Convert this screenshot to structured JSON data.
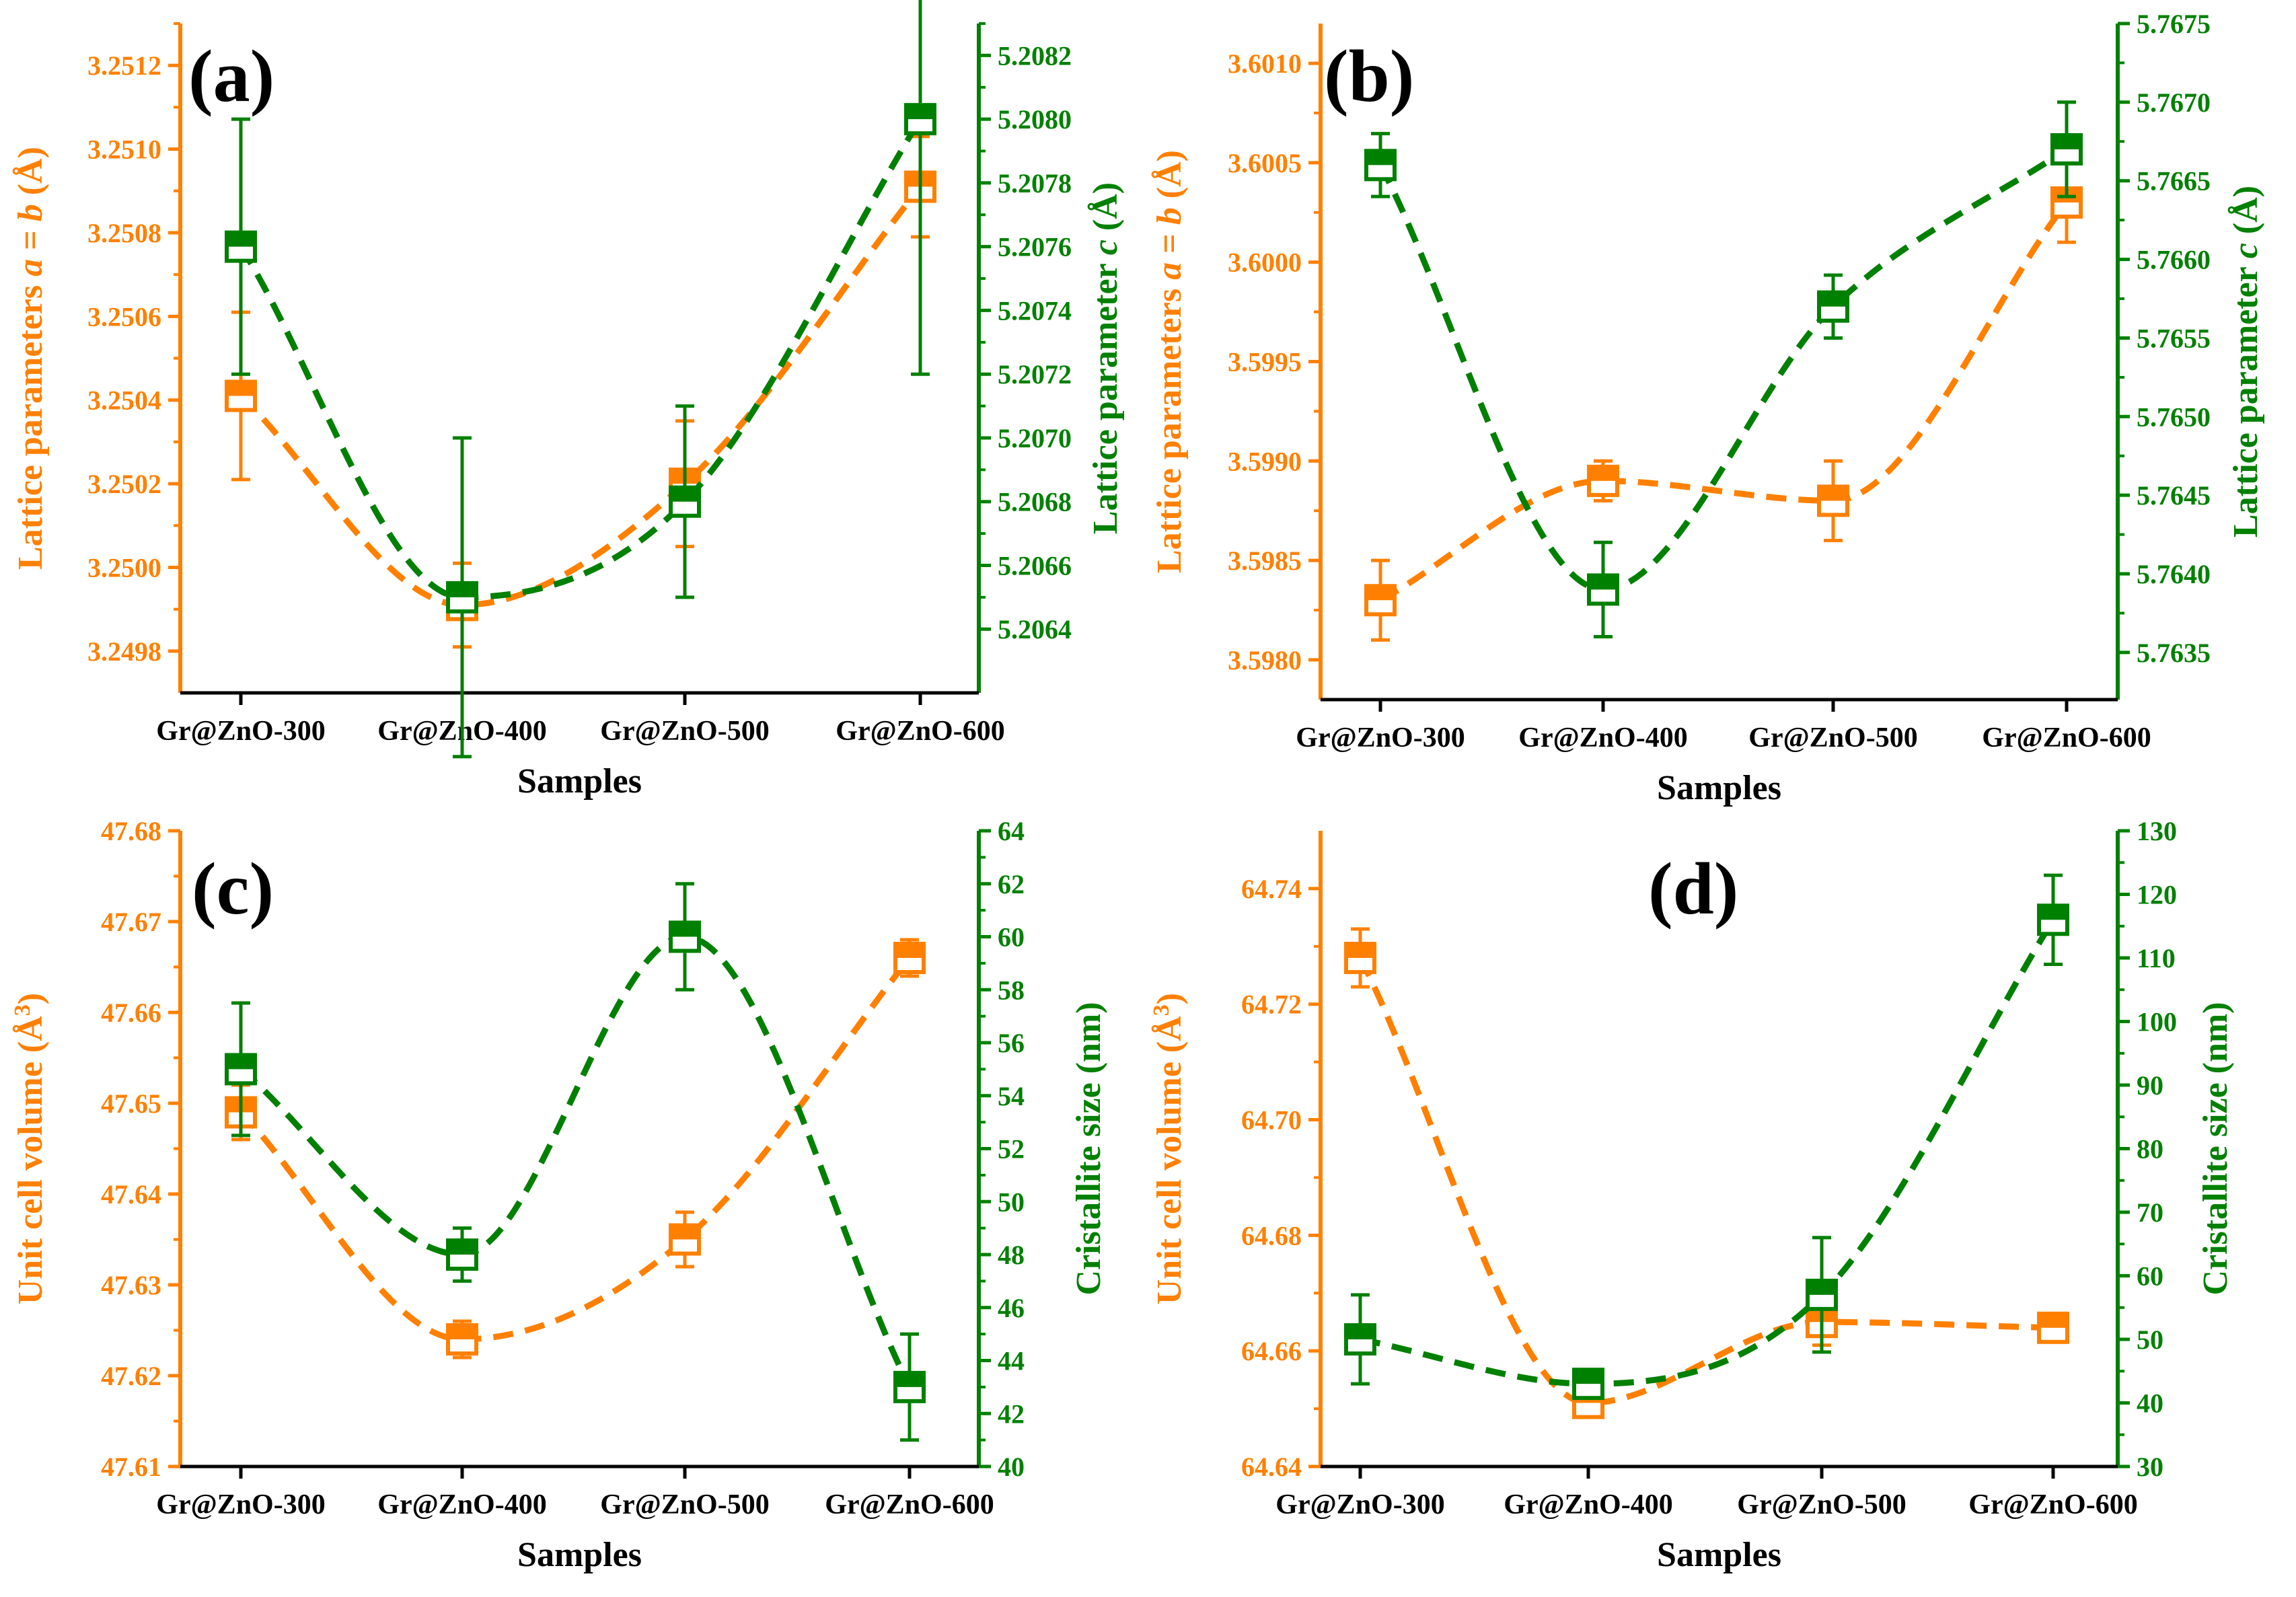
{
  "colors": {
    "left_series": "#FF8000",
    "right_series": "#008000",
    "axis": "#000000"
  },
  "chart_data": [
    {
      "type": "line",
      "panel_label": "(a)",
      "categories": [
        "Gr@ZnO-300",
        "Gr@ZnO-400",
        "Gr@ZnO-500",
        "Gr@ZnO-600"
      ],
      "xlabel": "Samples",
      "ylabel_left": [
        "Lattice parameters ",
        "a",
        " = ",
        "b",
        " (Å)"
      ],
      "ylabel_right": [
        "Lattice parameter ",
        "c",
        " (Å)"
      ],
      "ylim_left": [
        3.2497,
        3.2513
      ],
      "ylim_right": [
        5.2062,
        5.2083
      ],
      "yticks_left": [
        "3.2498",
        "3.2500",
        "3.2502",
        "3.2504",
        "3.2506",
        "3.2508",
        "3.2510",
        "3.2512"
      ],
      "yticks_right": [
        "5.2064",
        "5.2066",
        "5.2068",
        "5.2070",
        "5.2072",
        "5.2074",
        "5.2076",
        "5.2078",
        "5.2080",
        "5.2082"
      ],
      "series": [
        {
          "axis": "left",
          "values": [
            3.25041,
            3.24991,
            3.2502,
            3.25091
          ],
          "errors": [
            0.0002,
            0.0001,
            0.00015,
            0.00012
          ]
        },
        {
          "axis": "right",
          "values": [
            5.2076,
            5.2065,
            5.2068,
            5.208
          ],
          "errors": [
            0.0004,
            0.0005,
            0.0003,
            0.0008
          ]
        }
      ]
    },
    {
      "type": "line",
      "panel_label": "(b)",
      "categories": [
        "Gr@ZnO-300",
        "Gr@ZnO-400",
        "Gr@ZnO-500",
        "Gr@ZnO-600"
      ],
      "xlabel": "Samples",
      "ylabel_left": [
        "Lattice parameters ",
        "a",
        " = ",
        "b",
        " (Å)"
      ],
      "ylabel_right": [
        "Lattice parameter ",
        "c",
        " (Å)"
      ],
      "ylim_left": [
        3.5978,
        3.6012
      ],
      "ylim_right": [
        5.7632,
        5.7675
      ],
      "yticks_left": [
        "3.5980",
        "3.5985",
        "3.5990",
        "3.5995",
        "3.6000",
        "3.6005",
        "3.6010"
      ],
      "yticks_right": [
        "5.7635",
        "5.7640",
        "5.7645",
        "5.7650",
        "5.7655",
        "5.7660",
        "5.7665",
        "5.7670",
        "5.7675"
      ],
      "series": [
        {
          "axis": "left",
          "values": [
            3.5983,
            3.5989,
            3.5988,
            3.6003
          ],
          "errors": [
            0.0002,
            0.0001,
            0.0002,
            0.0002
          ]
        },
        {
          "axis": "right",
          "values": [
            5.7666,
            5.7639,
            5.7657,
            5.7667
          ],
          "errors": [
            0.0002,
            0.0003,
            0.0002,
            0.0003
          ]
        }
      ]
    },
    {
      "type": "line",
      "panel_label": "(c)",
      "categories": [
        "Gr@ZnO-300",
        "Gr@ZnO-400",
        "Gr@ZnO-500",
        "Gr@ZnO-600"
      ],
      "xlabel": "Samples",
      "ylabel_left": [
        "Unit cell volume (Å",
        "3",
        ")"
      ],
      "ylabel_right": [
        "Cristallite size (nm)"
      ],
      "ylim_left": [
        47.61,
        47.68
      ],
      "ylim_right": [
        40,
        64
      ],
      "yticks_left": [
        "47.61",
        "47.62",
        "47.63",
        "47.64",
        "47.65",
        "47.66",
        "47.67",
        "47.68"
      ],
      "yticks_right": [
        "40",
        "42",
        "44",
        "46",
        "48",
        "50",
        "52",
        "54",
        "56",
        "58",
        "60",
        "62",
        "64"
      ],
      "series": [
        {
          "axis": "left",
          "values": [
            47.649,
            47.624,
            47.635,
            47.666
          ],
          "errors": [
            0.003,
            0.002,
            0.003,
            0.002
          ]
        },
        {
          "axis": "right",
          "values": [
            55,
            48,
            60,
            43
          ],
          "errors": [
            2.5,
            1,
            2,
            2
          ]
        }
      ]
    },
    {
      "type": "line",
      "panel_label": "(d)",
      "categories": [
        "Gr@ZnO-300",
        "Gr@ZnO-400",
        "Gr@ZnO-500",
        "Gr@ZnO-600"
      ],
      "xlabel": "Samples",
      "ylabel_left": [
        "Unit cell volume (Å",
        "3",
        ")"
      ],
      "ylabel_right": [
        "Cristallite size (nm)"
      ],
      "ylim_left": [
        64.64,
        64.75
      ],
      "ylim_right": [
        30,
        130
      ],
      "yticks_left": [
        "64.64",
        "64.66",
        "64.68",
        "64.70",
        "64.72",
        "64.74"
      ],
      "yticks_right": [
        "30",
        "40",
        "50",
        "60",
        "70",
        "80",
        "90",
        "100",
        "110",
        "120",
        "130"
      ],
      "series": [
        {
          "axis": "left",
          "values": [
            64.728,
            64.651,
            64.665,
            64.664
          ],
          "errors": [
            0.005,
            0.002,
            0.004,
            0.002
          ]
        },
        {
          "axis": "right",
          "values": [
            50,
            43,
            57,
            116
          ],
          "errors": [
            7,
            1,
            9,
            7
          ]
        }
      ]
    }
  ]
}
